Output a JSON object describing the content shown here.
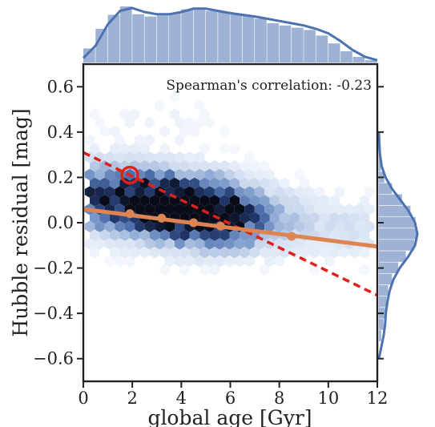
{
  "chart_data": {
    "type": "hexbin-joint",
    "xlabel": "global age [Gyr]",
    "ylabel": "Hubble residual [mag]",
    "xlim": [
      0,
      12
    ],
    "ylim": [
      -0.7,
      0.7
    ],
    "x_ticks": [
      0,
      2,
      4,
      6,
      8,
      10,
      12
    ],
    "y_ticks": [
      -0.6,
      -0.4,
      -0.2,
      0.0,
      0.2,
      0.4,
      0.6
    ],
    "annotation": "Spearman's correlation: -0.23",
    "colors": {
      "hex": "#203a6b",
      "marginal": "#4c72b0",
      "fit": "#dd8452",
      "dashed": "#e0211b"
    },
    "fit_line": {
      "x": [
        0,
        12
      ],
      "y": [
        0.06,
        -0.105
      ]
    },
    "binned_points": {
      "x": [
        1.9,
        3.2,
        4.5,
        5.6,
        8.5
      ],
      "y": [
        0.04,
        0.02,
        0.0,
        -0.015,
        -0.06
      ]
    },
    "dashed_line": {
      "x": [
        0,
        12
      ],
      "y": [
        0.31,
        -0.32
      ]
    },
    "circle_marker": {
      "x": 1.9,
      "y": 0.21
    },
    "marginal_x": {
      "bins_x": [
        0.5,
        1.0,
        1.5,
        2.0,
        2.5,
        3.0,
        3.5,
        4.0,
        4.5,
        5.0,
        5.5,
        6.0,
        6.5,
        7.0,
        7.5,
        8.0,
        8.5,
        9.0,
        9.5,
        10.0,
        10.5,
        11.0,
        11.5,
        12.0
      ],
      "counts": [
        0.25,
        0.6,
        0.85,
        1.0,
        0.86,
        0.82,
        0.84,
        0.88,
        0.95,
        0.98,
        0.92,
        0.9,
        0.86,
        0.84,
        0.78,
        0.7,
        0.66,
        0.62,
        0.58,
        0.48,
        0.34,
        0.2,
        0.1,
        0.04
      ],
      "kde_x": [
        0,
        0.5,
        1.0,
        1.5,
        2.0,
        2.5,
        3.0,
        3.5,
        4.0,
        4.5,
        5.0,
        5.5,
        6.0,
        6.5,
        7.0,
        7.5,
        8.0,
        8.5,
        9.0,
        9.5,
        10.0,
        10.5,
        11.0,
        11.5,
        12.0
      ],
      "kde_y": [
        0.08,
        0.3,
        0.68,
        0.92,
        0.97,
        0.9,
        0.86,
        0.86,
        0.9,
        0.96,
        0.96,
        0.92,
        0.88,
        0.85,
        0.82,
        0.78,
        0.74,
        0.7,
        0.66,
        0.6,
        0.52,
        0.38,
        0.22,
        0.1,
        0.04
      ]
    },
    "marginal_y": {
      "bins_y": [
        -0.5,
        -0.45,
        -0.4,
        -0.35,
        -0.3,
        -0.25,
        -0.2,
        -0.15,
        -0.1,
        -0.05,
        0.0,
        0.05,
        0.1,
        0.15,
        0.2,
        0.25,
        0.3
      ],
      "counts": [
        0.06,
        0.12,
        0.16,
        0.2,
        0.24,
        0.34,
        0.5,
        0.7,
        0.92,
        1.0,
        0.95,
        0.82,
        0.6,
        0.34,
        0.14,
        0.05,
        0.02
      ],
      "kde_y": [
        -0.6,
        -0.5,
        -0.45,
        -0.4,
        -0.35,
        -0.3,
        -0.25,
        -0.2,
        -0.15,
        -0.1,
        -0.05,
        0.0,
        0.05,
        0.1,
        0.15,
        0.2,
        0.25,
        0.3,
        0.35,
        0.4
      ],
      "kde_x": [
        0.0,
        0.12,
        0.16,
        0.18,
        0.22,
        0.28,
        0.38,
        0.54,
        0.76,
        0.94,
        1.0,
        0.94,
        0.78,
        0.56,
        0.34,
        0.17,
        0.07,
        0.03,
        0.01,
        0.0
      ]
    }
  }
}
